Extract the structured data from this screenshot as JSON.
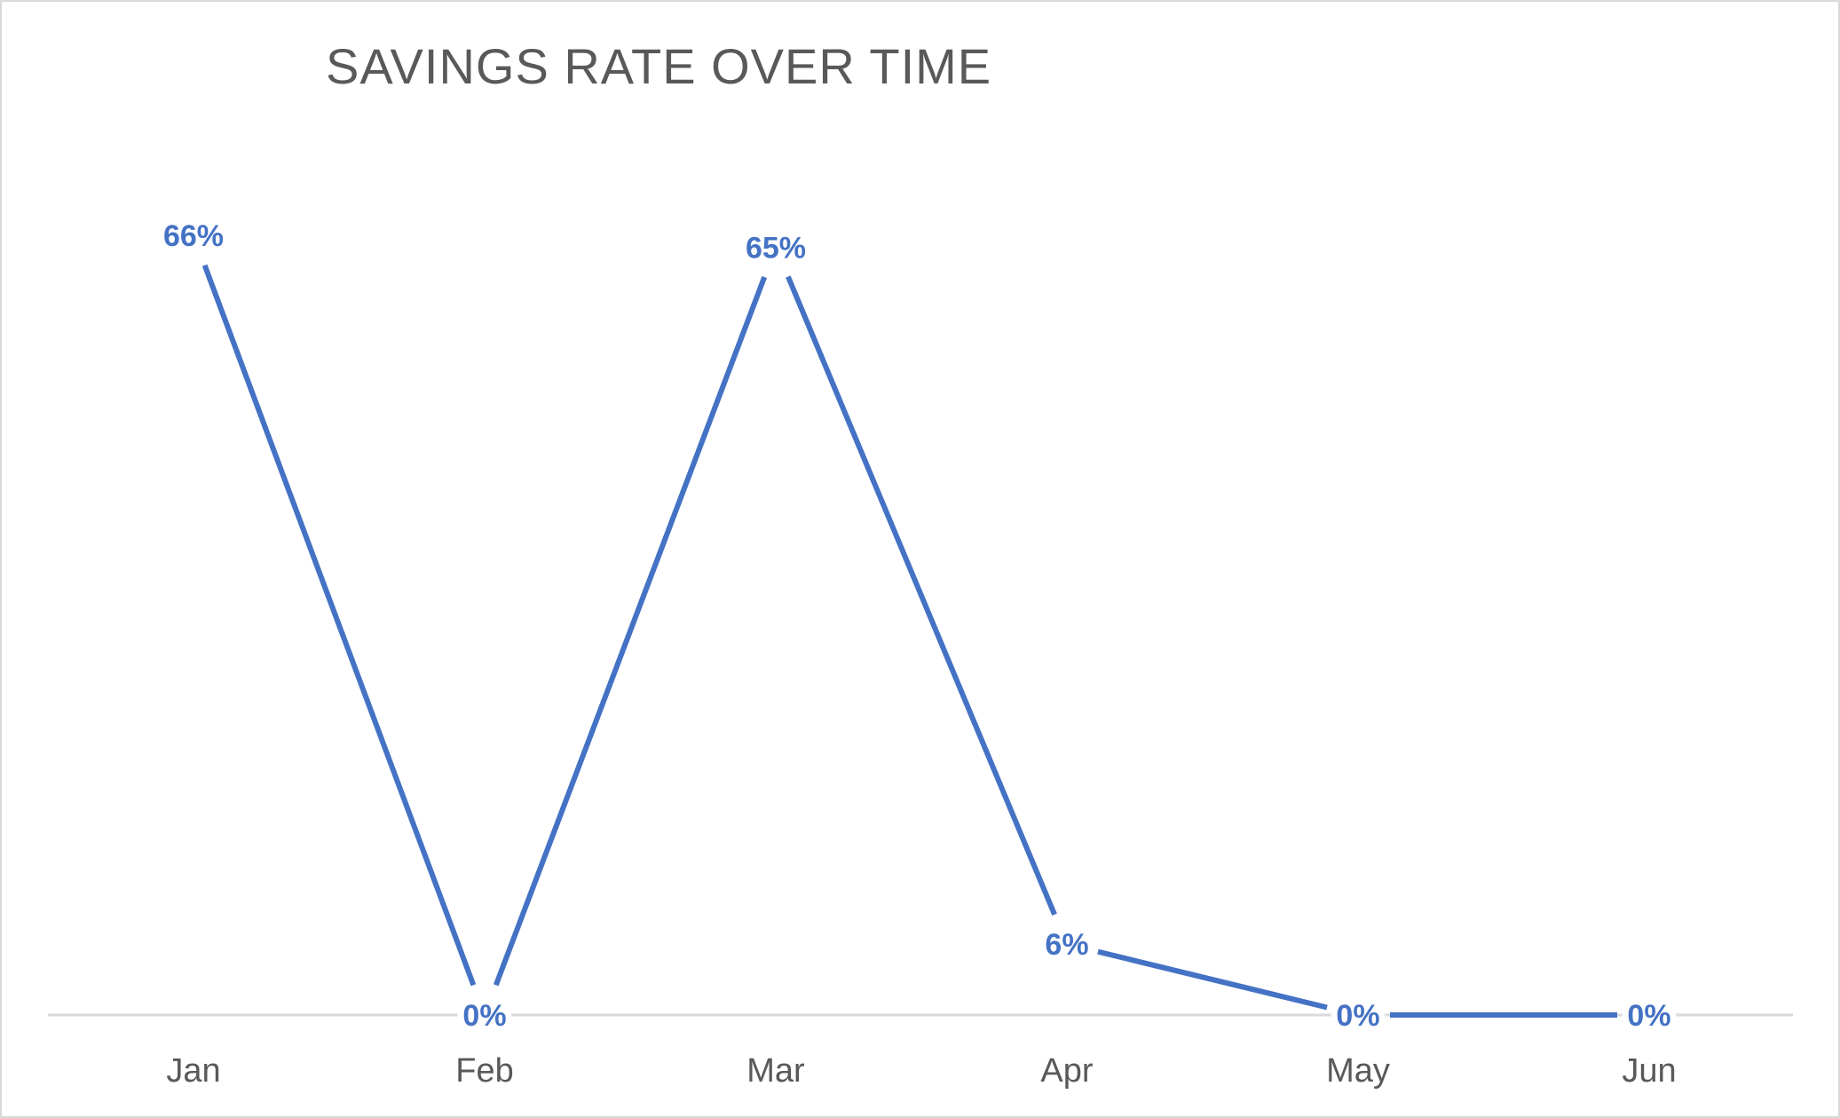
{
  "chart_data": {
    "type": "line",
    "title": "SAVINGS RATE OVER TIME",
    "xlabel": "",
    "ylabel": "",
    "categories": [
      "Jan",
      "Feb",
      "Mar",
      "Apr",
      "May",
      "Jun"
    ],
    "series": [
      {
        "values": [
          0.66,
          0,
          0.65,
          0.06,
          0,
          0
        ],
        "labels": [
          "66%",
          "0%",
          "65%",
          "6%",
          "0%",
          "0%"
        ],
        "color": "#4472c4"
      }
    ],
    "ylim": [
      0,
      0.7
    ],
    "grid": false,
    "legend": "none",
    "axis_color": "#d9d9d9",
    "text_color": "#595959"
  }
}
